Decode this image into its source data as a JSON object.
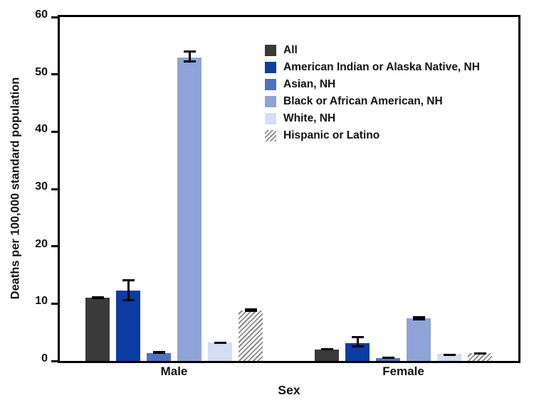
{
  "chart_data": {
    "type": "bar",
    "title": "",
    "xlabel": "Sex",
    "ylabel": "Deaths per 100,000 standard population",
    "ylim": [
      0,
      60
    ],
    "yticks": [
      0,
      10,
      20,
      30,
      40,
      50,
      60
    ],
    "categories": [
      "Male",
      "Female"
    ],
    "grid": false,
    "error_bars": true,
    "legend_position": "inside-top-right-of-center",
    "series": [
      {
        "name": "All",
        "color": "#3a3a3a",
        "pattern": "solid",
        "values": [
          11.0,
          2.0
        ],
        "ci_low": [
          10.8,
          1.9
        ],
        "ci_high": [
          11.3,
          2.2
        ]
      },
      {
        "name": "American Indian or Alaska Native, NH",
        "color": "#0b3da2",
        "pattern": "solid",
        "values": [
          12.3,
          3.1
        ],
        "ci_low": [
          10.4,
          2.3
        ],
        "ci_high": [
          14.3,
          4.3
        ]
      },
      {
        "name": "Asian, NH",
        "color": "#4d72c2",
        "pattern": "solid",
        "values": [
          1.4,
          0.5
        ],
        "ci_low": [
          1.2,
          0.4
        ],
        "ci_high": [
          1.7,
          0.7
        ]
      },
      {
        "name": "Black or African American, NH",
        "color": "#8ea3d8",
        "pattern": "solid",
        "values": [
          52.9,
          7.5
        ],
        "ci_low": [
          52.1,
          7.1
        ],
        "ci_high": [
          54.2,
          7.8
        ]
      },
      {
        "name": "White, NH",
        "color": "#d4ddf1",
        "pattern": "solid",
        "values": [
          3.2,
          1.2
        ],
        "ci_low": [
          3.0,
          1.1
        ],
        "ci_high": [
          3.4,
          1.3
        ]
      },
      {
        "name": "Hispanic or Latino",
        "color": "#8a8a8a",
        "pattern": "hatch",
        "values": [
          8.8,
          1.4
        ],
        "ci_low": [
          8.6,
          1.3
        ],
        "ci_high": [
          9.2,
          1.5
        ]
      }
    ]
  },
  "colors": {
    "axis": "#000000",
    "text": "#111111",
    "background": "#ffffff"
  }
}
